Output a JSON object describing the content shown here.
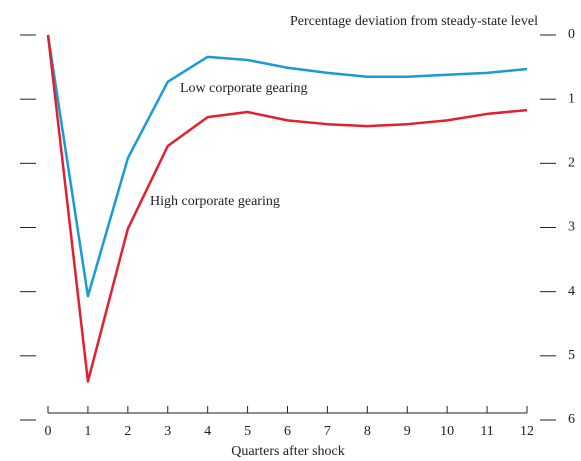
{
  "chart_data": {
    "type": "line",
    "annotations": [
      "Percentage deviation from steady-state level"
    ],
    "x_label": "Quarters after shock",
    "x": [
      0,
      1,
      2,
      3,
      4,
      5,
      6,
      7,
      8,
      9,
      10,
      11,
      12
    ],
    "xlim": [
      0,
      12
    ],
    "xticks": [
      0,
      1,
      2,
      3,
      4,
      5,
      6,
      7,
      8,
      9,
      10,
      11,
      12
    ],
    "ylim": [
      -6,
      0
    ],
    "yticks": [
      {
        "value": 0,
        "label": "0"
      },
      {
        "value": -1,
        "label": "1"
      },
      {
        "value": -2,
        "label": "2"
      },
      {
        "value": -3,
        "label": "3"
      },
      {
        "value": -4,
        "label": "4"
      },
      {
        "value": -5,
        "label": "5"
      },
      {
        "value": -6,
        "label": "6"
      }
    ],
    "series": [
      {
        "name": "Low corporate gearing",
        "color": "#1a9ad6",
        "values": [
          0,
          -4.07,
          -1.92,
          -0.73,
          -0.34,
          -0.39,
          -0.51,
          -0.59,
          -0.65,
          -0.65,
          -0.62,
          -0.59,
          -0.53
        ]
      },
      {
        "name": "High corporate gearing",
        "color": "#e2202f",
        "values": [
          0,
          -5.4,
          -3.02,
          -1.73,
          -1.28,
          -1.2,
          -1.33,
          -1.39,
          -1.42,
          -1.39,
          -1.33,
          -1.23,
          -1.17
        ]
      }
    ]
  }
}
